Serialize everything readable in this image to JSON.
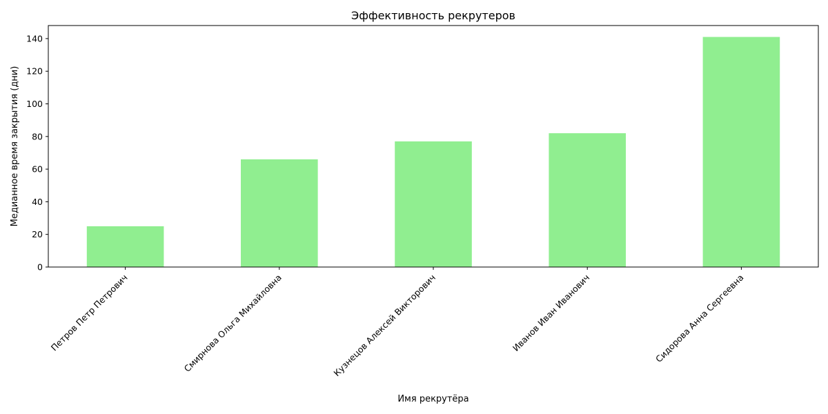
{
  "chart_data": {
    "type": "bar",
    "title": "Эффективность рекрутеров",
    "xlabel": "Имя рекрутёра",
    "ylabel": "Медианное время закрытия (дни)",
    "categories": [
      "Петров Петр Петрович",
      "Смирнова Ольга Михайловна",
      "Кузнецов Алексей Викторович",
      "Иванов Иван Иванович",
      "Сидорова Анна Сергеевна"
    ],
    "values": [
      25,
      66,
      77,
      82,
      141
    ],
    "ylim": [
      0,
      148
    ],
    "yticks": [
      0,
      20,
      40,
      60,
      80,
      100,
      120,
      140
    ],
    "grid": false,
    "legend": "none",
    "bar_color": "#90ee90"
  }
}
